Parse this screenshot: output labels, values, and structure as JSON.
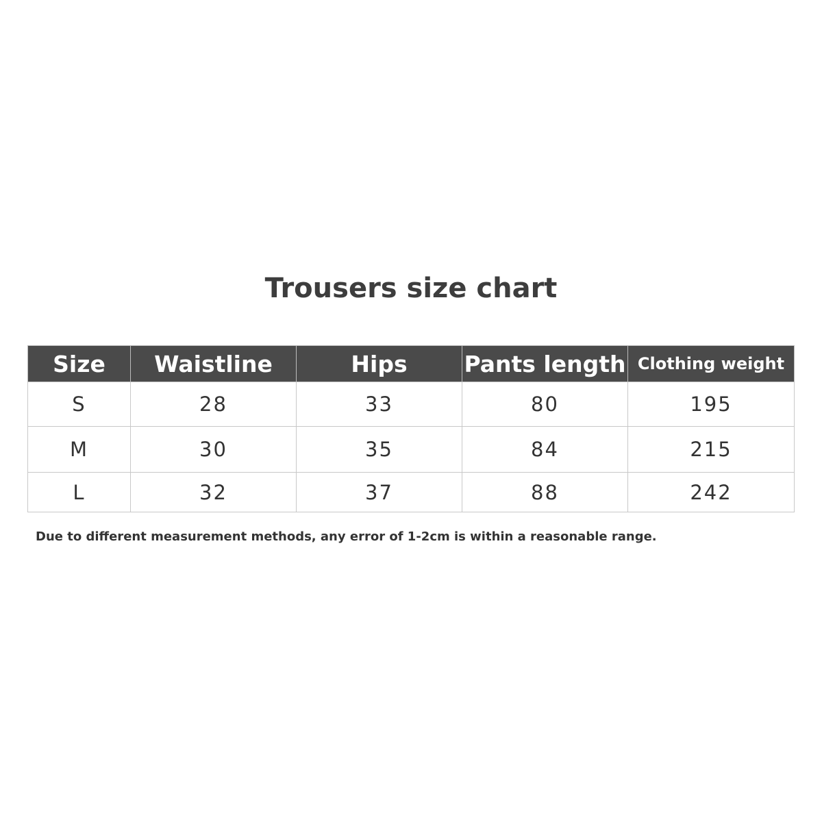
{
  "title": "Trousers size chart",
  "table": {
    "headers": [
      "Size",
      "Waistline",
      "Hips",
      "Pants length",
      "Clothing weight"
    ],
    "rows": [
      [
        "S",
        "28",
        "33",
        "80",
        "195"
      ],
      [
        "M",
        "30",
        "35",
        "84",
        "215"
      ],
      [
        "L",
        "32",
        "37",
        "88",
        "242"
      ]
    ]
  },
  "note": "Due to different measurement methods, any error of 1-2cm is within a reasonable range.",
  "colors": {
    "header_bg": "#4a4a4a",
    "header_text": "#ffffff",
    "border": "#c8c8c8"
  }
}
